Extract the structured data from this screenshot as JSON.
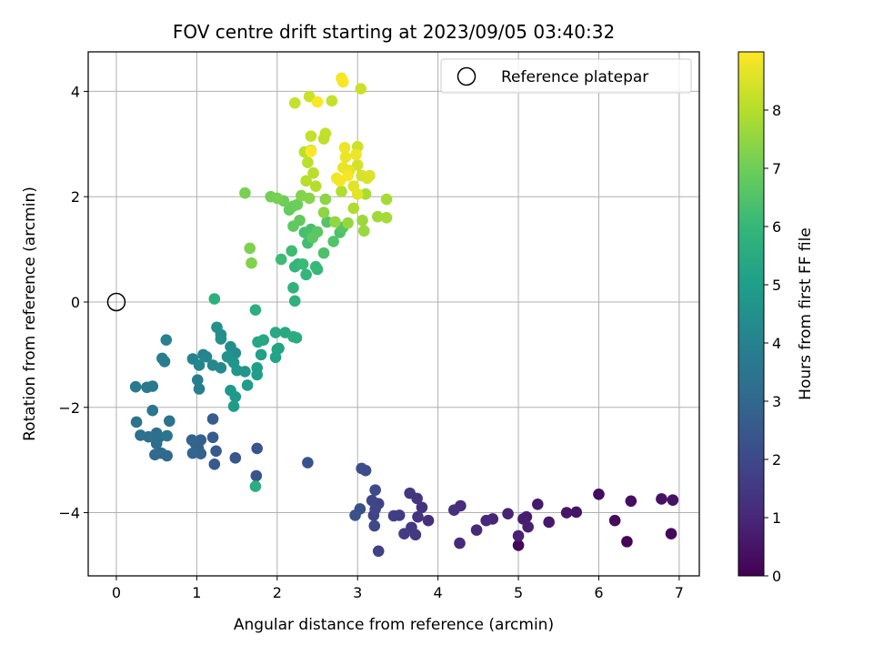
{
  "chart_data": {
    "type": "scatter",
    "title": "FOV centre drift starting at 2023/09/05 03:40:32",
    "xlabel": "Angular distance from reference (arcmin)",
    "ylabel": "Rotation from reference (arcmin)",
    "xlim": [
      -0.35,
      7.25
    ],
    "ylim": [
      -5.2,
      4.75
    ],
    "xticks": [
      0,
      1,
      2,
      3,
      4,
      5,
      6,
      7
    ],
    "yticks": [
      -4,
      -2,
      0,
      2,
      4
    ],
    "grid": true,
    "legend": {
      "placement": "top-right",
      "entries": [
        "Reference platepar"
      ]
    },
    "reference_point": {
      "x": 0,
      "y": 0
    },
    "colorbar": {
      "label": "Hours from first FF file",
      "range": [
        0,
        9
      ],
      "ticks": [
        0,
        1,
        2,
        3,
        4,
        5,
        6,
        7,
        8
      ],
      "colormap": "viridis",
      "colors": [
        "#440154",
        "#482878",
        "#3e4989",
        "#31688e",
        "#26828e",
        "#1f9e89",
        "#35b779",
        "#6ece58",
        "#b5de2b",
        "#fde725"
      ]
    },
    "series": [
      {
        "points": [
          {
            "x": 6.35,
            "y": -4.55,
            "t": 0.1
          },
          {
            "x": 5.0,
            "y": -4.62,
            "t": 0.15
          },
          {
            "x": 6.9,
            "y": -4.4,
            "t": 0.2
          },
          {
            "x": 6.2,
            "y": -4.15,
            "t": 0.25
          },
          {
            "x": 6.0,
            "y": -3.65,
            "t": 0.3
          },
          {
            "x": 6.4,
            "y": -3.78,
            "t": 0.35
          },
          {
            "x": 6.78,
            "y": -3.74,
            "t": 0.4
          },
          {
            "x": 6.92,
            "y": -3.76,
            "t": 0.45
          },
          {
            "x": 5.72,
            "y": -3.99,
            "t": 0.5
          },
          {
            "x": 5.6,
            "y": -4.0,
            "t": 0.55
          },
          {
            "x": 5.38,
            "y": -4.18,
            "t": 0.6
          },
          {
            "x": 5.24,
            "y": -3.84,
            "t": 0.65
          },
          {
            "x": 5.1,
            "y": -4.08,
            "t": 0.7
          },
          {
            "x": 5.06,
            "y": -4.12,
            "t": 0.75
          },
          {
            "x": 5.12,
            "y": -4.27,
            "t": 0.8
          },
          {
            "x": 5.0,
            "y": -4.44,
            "t": 0.85
          },
          {
            "x": 4.87,
            "y": -4.02,
            "t": 0.9
          },
          {
            "x": 4.68,
            "y": -4.12,
            "t": 0.95
          },
          {
            "x": 4.6,
            "y": -4.15,
            "t": 1.0
          },
          {
            "x": 4.48,
            "y": -4.33,
            "t": 1.05
          },
          {
            "x": 4.27,
            "y": -4.58,
            "t": 1.1
          },
          {
            "x": 4.28,
            "y": -3.87,
            "t": 1.15
          },
          {
            "x": 4.2,
            "y": -3.95,
            "t": 1.2
          },
          {
            "x": 3.88,
            "y": -4.15,
            "t": 1.25
          },
          {
            "x": 3.8,
            "y": -3.9,
            "t": 1.3
          },
          {
            "x": 3.75,
            "y": -4.08,
            "t": 1.35
          },
          {
            "x": 3.74,
            "y": -3.73,
            "t": 1.4
          },
          {
            "x": 3.65,
            "y": -3.63,
            "t": 1.45
          },
          {
            "x": 3.67,
            "y": -4.28,
            "t": 1.5
          },
          {
            "x": 3.72,
            "y": -4.42,
            "t": 1.55
          },
          {
            "x": 3.58,
            "y": -4.4,
            "t": 1.6
          },
          {
            "x": 3.52,
            "y": -4.05,
            "t": 1.65
          },
          {
            "x": 3.45,
            "y": -4.06,
            "t": 1.7
          },
          {
            "x": 3.26,
            "y": -4.73,
            "t": 1.75
          },
          {
            "x": 3.26,
            "y": -3.83,
            "t": 1.8
          },
          {
            "x": 3.2,
            "y": -4.05,
            "t": 1.85
          },
          {
            "x": 3.18,
            "y": -3.77,
            "t": 1.9
          },
          {
            "x": 3.22,
            "y": -3.93,
            "t": 1.95
          },
          {
            "x": 3.21,
            "y": -4.25,
            "t": 2.0
          },
          {
            "x": 3.22,
            "y": -3.57,
            "t": 2.05
          },
          {
            "x": 3.1,
            "y": -3.2,
            "t": 2.1
          },
          {
            "x": 3.05,
            "y": -3.16,
            "t": 2.15
          },
          {
            "x": 3.03,
            "y": -3.93,
            "t": 2.2
          },
          {
            "x": 2.97,
            "y": -4.05,
            "t": 2.25
          },
          {
            "x": 2.38,
            "y": -3.05,
            "t": 2.3
          },
          {
            "x": 1.74,
            "y": -3.3,
            "t": 2.35
          },
          {
            "x": 1.75,
            "y": -2.78,
            "t": 2.4
          },
          {
            "x": 1.48,
            "y": -2.96,
            "t": 2.45
          },
          {
            "x": 1.22,
            "y": -3.08,
            "t": 2.5
          },
          {
            "x": 1.24,
            "y": -2.83,
            "t": 2.55
          },
          {
            "x": 1.2,
            "y": -2.57,
            "t": 2.6
          },
          {
            "x": 1.2,
            "y": -2.22,
            "t": 2.65
          },
          {
            "x": 1.05,
            "y": -2.62,
            "t": 2.7
          },
          {
            "x": 1.02,
            "y": -2.78,
            "t": 2.75
          },
          {
            "x": 1.05,
            "y": -2.88,
            "t": 2.8
          },
          {
            "x": 0.98,
            "y": -2.68,
            "t": 2.85
          },
          {
            "x": 0.94,
            "y": -2.62,
            "t": 2.9
          },
          {
            "x": 0.95,
            "y": -2.87,
            "t": 2.95
          },
          {
            "x": 0.63,
            "y": -2.92,
            "t": 3.0
          },
          {
            "x": 0.56,
            "y": -2.87,
            "t": 3.05
          },
          {
            "x": 0.48,
            "y": -2.9,
            "t": 3.1
          },
          {
            "x": 0.5,
            "y": -2.69,
            "t": 3.15
          },
          {
            "x": 0.5,
            "y": -2.49,
            "t": 3.2
          },
          {
            "x": 0.53,
            "y": -2.57,
            "t": 3.25
          },
          {
            "x": 0.4,
            "y": -2.56,
            "t": 3.3
          },
          {
            "x": 0.3,
            "y": -2.53,
            "t": 3.35
          },
          {
            "x": 0.25,
            "y": -2.28,
            "t": 3.4
          },
          {
            "x": 0.66,
            "y": -2.26,
            "t": 3.45
          },
          {
            "x": 0.63,
            "y": -2.54,
            "t": 3.5
          },
          {
            "x": 0.45,
            "y": -2.06,
            "t": 3.55
          },
          {
            "x": 0.38,
            "y": -1.62,
            "t": 3.6
          },
          {
            "x": 0.45,
            "y": -1.6,
            "t": 3.65
          },
          {
            "x": 0.24,
            "y": -1.61,
            "t": 3.7
          },
          {
            "x": 0.57,
            "y": -1.07,
            "t": 3.75
          },
          {
            "x": 0.6,
            "y": -1.13,
            "t": 3.8
          },
          {
            "x": 1.03,
            "y": -1.65,
            "t": 3.85
          },
          {
            "x": 1.01,
            "y": -1.48,
            "t": 3.9
          },
          {
            "x": 0.62,
            "y": -0.72,
            "t": 3.95
          },
          {
            "x": 0.95,
            "y": -1.08,
            "t": 4.0
          },
          {
            "x": 1.08,
            "y": -1.0,
            "t": 4.05
          },
          {
            "x": 1.03,
            "y": -1.2,
            "t": 4.1
          },
          {
            "x": 1.12,
            "y": -1.04,
            "t": 4.15
          },
          {
            "x": 1.2,
            "y": -1.2,
            "t": 4.2
          },
          {
            "x": 1.3,
            "y": -1.25,
            "t": 4.25
          },
          {
            "x": 1.43,
            "y": -1.08,
            "t": 4.3
          },
          {
            "x": 1.48,
            "y": -0.97,
            "t": 4.35
          },
          {
            "x": 1.42,
            "y": -0.85,
            "t": 4.4
          },
          {
            "x": 1.3,
            "y": -0.62,
            "t": 4.45
          },
          {
            "x": 1.25,
            "y": -0.48,
            "t": 4.5
          },
          {
            "x": 1.3,
            "y": -0.7,
            "t": 4.55
          },
          {
            "x": 1.38,
            "y": -1.04,
            "t": 4.6
          },
          {
            "x": 1.46,
            "y": -1.15,
            "t": 4.65
          },
          {
            "x": 1.5,
            "y": -1.3,
            "t": 4.7
          },
          {
            "x": 1.6,
            "y": -1.32,
            "t": 4.75
          },
          {
            "x": 1.42,
            "y": -1.68,
            "t": 4.8
          },
          {
            "x": 1.48,
            "y": -1.8,
            "t": 4.85
          },
          {
            "x": 1.46,
            "y": -1.98,
            "t": 4.9
          },
          {
            "x": 1.63,
            "y": -1.58,
            "t": 4.95
          },
          {
            "x": 1.75,
            "y": -1.38,
            "t": 5.0
          },
          {
            "x": 1.75,
            "y": -1.25,
            "t": 5.05
          },
          {
            "x": 1.8,
            "y": -1.0,
            "t": 5.1
          },
          {
            "x": 1.98,
            "y": -1.05,
            "t": 5.15
          },
          {
            "x": 2.0,
            "y": -0.9,
            "t": 5.2
          },
          {
            "x": 2.02,
            "y": -0.88,
            "t": 5.25
          },
          {
            "x": 1.76,
            "y": -0.76,
            "t": 5.3
          },
          {
            "x": 1.83,
            "y": -0.72,
            "t": 5.35
          },
          {
            "x": 1.98,
            "y": -0.58,
            "t": 5.4
          },
          {
            "x": 2.1,
            "y": -0.58,
            "t": 5.45
          },
          {
            "x": 2.2,
            "y": -0.66,
            "t": 5.5
          },
          {
            "x": 2.24,
            "y": -0.68,
            "t": 5.55
          },
          {
            "x": 1.73,
            "y": -3.5,
            "t": 5.6
          },
          {
            "x": 1.73,
            "y": -0.15,
            "t": 5.65
          },
          {
            "x": 1.22,
            "y": 0.06,
            "t": 5.7
          },
          {
            "x": 2.22,
            "y": 0.02,
            "t": 5.75
          },
          {
            "x": 2.2,
            "y": 0.27,
            "t": 5.8
          },
          {
            "x": 2.26,
            "y": 0.72,
            "t": 5.85
          },
          {
            "x": 2.22,
            "y": 0.67,
            "t": 5.9
          },
          {
            "x": 2.36,
            "y": 0.52,
            "t": 5.95
          },
          {
            "x": 2.5,
            "y": 0.62,
            "t": 6.0
          },
          {
            "x": 2.48,
            "y": 0.67,
            "t": 6.05
          },
          {
            "x": 2.32,
            "y": 0.72,
            "t": 6.1
          },
          {
            "x": 2.05,
            "y": 0.81,
            "t": 6.15
          },
          {
            "x": 2.18,
            "y": 0.97,
            "t": 6.2
          },
          {
            "x": 2.38,
            "y": 1.12,
            "t": 6.25
          },
          {
            "x": 2.34,
            "y": 1.32,
            "t": 6.3
          },
          {
            "x": 2.42,
            "y": 1.38,
            "t": 6.35
          },
          {
            "x": 2.58,
            "y": 0.93,
            "t": 6.4
          },
          {
            "x": 2.78,
            "y": 1.32,
            "t": 6.45
          },
          {
            "x": 2.7,
            "y": 1.15,
            "t": 6.5
          },
          {
            "x": 2.62,
            "y": 1.52,
            "t": 6.55
          },
          {
            "x": 2.82,
            "y": 1.42,
            "t": 6.6
          },
          {
            "x": 2.5,
            "y": 1.33,
            "t": 6.65
          },
          {
            "x": 2.44,
            "y": 1.22,
            "t": 6.7
          },
          {
            "x": 2.2,
            "y": 1.44,
            "t": 6.75
          },
          {
            "x": 2.28,
            "y": 1.55,
            "t": 6.8
          },
          {
            "x": 2.15,
            "y": 1.75,
            "t": 6.85
          },
          {
            "x": 2.2,
            "y": 1.82,
            "t": 6.9
          },
          {
            "x": 2.25,
            "y": 1.85,
            "t": 6.95
          },
          {
            "x": 2.08,
            "y": 1.92,
            "t": 7.0
          },
          {
            "x": 1.92,
            "y": 2.0,
            "t": 7.05
          },
          {
            "x": 2.0,
            "y": 1.97,
            "t": 7.1
          },
          {
            "x": 1.6,
            "y": 2.07,
            "t": 7.15
          },
          {
            "x": 1.66,
            "y": 1.02,
            "t": 7.2
          },
          {
            "x": 1.68,
            "y": 0.74,
            "t": 7.25
          },
          {
            "x": 2.3,
            "y": 2.02,
            "t": 7.3
          },
          {
            "x": 2.4,
            "y": 1.97,
            "t": 7.35
          },
          {
            "x": 2.6,
            "y": 1.95,
            "t": 7.4
          },
          {
            "x": 2.58,
            "y": 1.7,
            "t": 7.45
          },
          {
            "x": 2.72,
            "y": 1.52,
            "t": 7.5
          },
          {
            "x": 2.88,
            "y": 1.5,
            "t": 7.55
          },
          {
            "x": 3.08,
            "y": 1.35,
            "t": 7.6
          },
          {
            "x": 3.06,
            "y": 1.55,
            "t": 7.65
          },
          {
            "x": 3.25,
            "y": 1.62,
            "t": 7.7
          },
          {
            "x": 3.36,
            "y": 1.6,
            "t": 7.75
          },
          {
            "x": 3.36,
            "y": 1.95,
            "t": 7.8
          },
          {
            "x": 3.1,
            "y": 2.05,
            "t": 7.85
          },
          {
            "x": 2.95,
            "y": 1.78,
            "t": 7.9
          },
          {
            "x": 2.8,
            "y": 2.1,
            "t": 7.95
          },
          {
            "x": 2.48,
            "y": 2.2,
            "t": 8.0
          },
          {
            "x": 2.36,
            "y": 2.3,
            "t": 8.02
          },
          {
            "x": 2.45,
            "y": 2.45,
            "t": 8.05
          },
          {
            "x": 2.38,
            "y": 2.65,
            "t": 8.08
          },
          {
            "x": 2.34,
            "y": 2.85,
            "t": 8.1
          },
          {
            "x": 2.42,
            "y": 2.88,
            "t": 8.12
          },
          {
            "x": 2.58,
            "y": 3.1,
            "t": 8.15
          },
          {
            "x": 2.6,
            "y": 3.2,
            "t": 8.18
          },
          {
            "x": 2.42,
            "y": 3.15,
            "t": 8.2
          },
          {
            "x": 2.68,
            "y": 3.82,
            "t": 8.22
          },
          {
            "x": 2.22,
            "y": 3.78,
            "t": 8.25
          },
          {
            "x": 2.4,
            "y": 3.9,
            "t": 8.28
          },
          {
            "x": 3.04,
            "y": 4.05,
            "t": 8.3
          },
          {
            "x": 3.0,
            "y": 2.95,
            "t": 8.35
          },
          {
            "x": 3.0,
            "y": 2.6,
            "t": 8.4
          },
          {
            "x": 3.05,
            "y": 2.4,
            "t": 8.45
          },
          {
            "x": 3.12,
            "y": 2.35,
            "t": 8.5
          },
          {
            "x": 3.15,
            "y": 2.4,
            "t": 8.55
          },
          {
            "x": 2.95,
            "y": 2.2,
            "t": 8.6
          },
          {
            "x": 3.0,
            "y": 2.05,
            "t": 8.65
          },
          {
            "x": 2.9,
            "y": 2.5,
            "t": 8.7
          },
          {
            "x": 2.82,
            "y": 2.55,
            "t": 8.72
          },
          {
            "x": 2.85,
            "y": 2.75,
            "t": 8.75
          },
          {
            "x": 2.98,
            "y": 2.8,
            "t": 8.78
          },
          {
            "x": 2.84,
            "y": 2.93,
            "t": 8.8
          },
          {
            "x": 2.74,
            "y": 2.35,
            "t": 8.85
          },
          {
            "x": 2.78,
            "y": 2.3,
            "t": 8.88
          },
          {
            "x": 2.88,
            "y": 2.4,
            "t": 8.9
          },
          {
            "x": 2.8,
            "y": 4.25,
            "t": 8.92
          },
          {
            "x": 2.82,
            "y": 4.18,
            "t": 8.94
          },
          {
            "x": 2.5,
            "y": 3.8,
            "t": 8.96
          },
          {
            "x": 2.42,
            "y": 2.86,
            "t": 8.98
          }
        ]
      }
    ]
  }
}
